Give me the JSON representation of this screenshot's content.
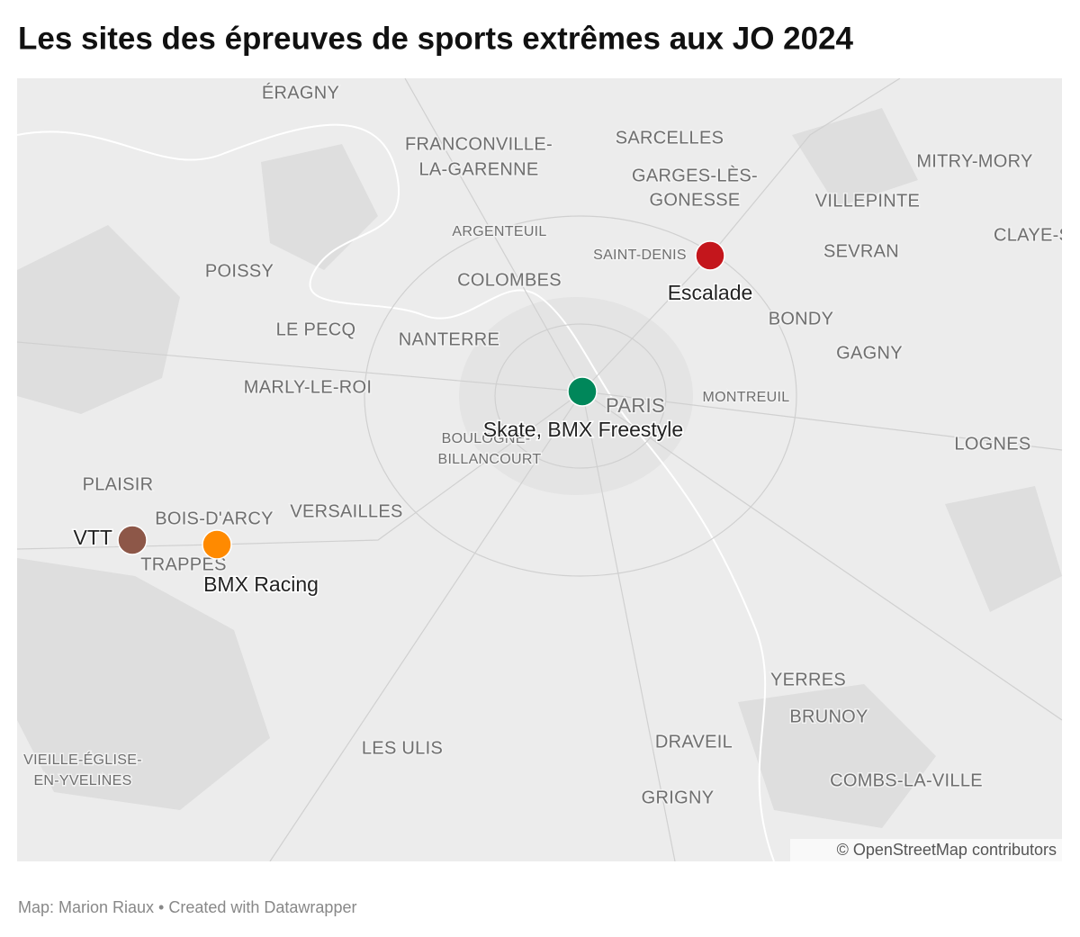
{
  "title": "Les sites des épreuves de sports extrêmes aux JO 2024",
  "places": [
    "ÉRAGNY",
    "FRANCONVILLE-",
    "LA-GARENNE",
    "SARCELLES",
    "GARGES-LÈS-",
    "GONESSE",
    "MITRY-MORY",
    "VILLEPINTE",
    "CLAYE-S",
    "ARGENTEUIL",
    "SAINT-DENIS",
    "SEVRAN",
    "POISSY",
    "COLOMBES",
    "BONDY",
    "LE PECQ",
    "NANTERRE",
    "GAGNY",
    "MARLY-LE-ROI",
    "MONTREUIL",
    "PARIS",
    "BOULOGNE-",
    "BILLANCOURT",
    "LOGNES",
    "PLAISIR",
    "BOIS-D'ARCY",
    "VERSAILLES",
    "TRAPPES",
    "YERRES",
    "BRUNOY",
    "LES ULIS",
    "DRAVEIL",
    "VIEILLE-ÉGLISE-",
    "EN-YVELINES",
    "COMBS-LA-VILLE",
    "GRIGNY"
  ],
  "markers": [
    {
      "label": "Escalade",
      "color": "#c4161c"
    },
    {
      "label": "Skate, BMX Freestyle",
      "color": "#00875a"
    },
    {
      "label": "VTT",
      "color": "#8d5748"
    },
    {
      "label": "BMX Racing",
      "color": "#ff8a00"
    }
  ],
  "attribution": "© OpenStreetMap contributors",
  "footer": "Map: Marion Riaux • Created with Datawrapper"
}
